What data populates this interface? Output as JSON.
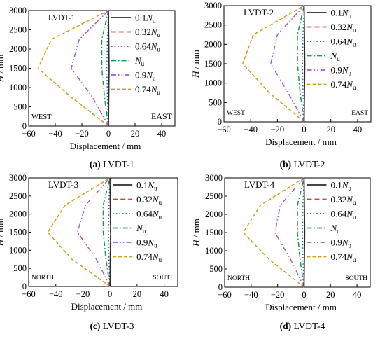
{
  "figure": {
    "legend_entries": [
      {
        "prefix": "0.1",
        "var": "N",
        "sub": "u",
        "color": "#2b2b2b",
        "dash": "solid"
      },
      {
        "prefix": "0.32",
        "var": "N",
        "sub": "u",
        "color": "#e8372e",
        "dash": "dash"
      },
      {
        "prefix": "0.64",
        "var": "N",
        "sub": "u",
        "color": "#1f5fb5",
        "dash": "dot"
      },
      {
        "prefix": "",
        "var": "N",
        "sub": "u",
        "color": "#1a9a48",
        "dash": "dashdot"
      },
      {
        "prefix": "0.9",
        "var": "N",
        "sub": "u",
        "color": "#a657d6",
        "dash": "dashdotdot"
      },
      {
        "prefix": "0.74",
        "var": "N",
        "sub": "u",
        "color": "#d99b1a",
        "dash": "shortdash"
      }
    ]
  },
  "chart_data": [
    {
      "type": "line",
      "panel_label": "(a)",
      "caption": "LVDT-1",
      "inner_title": "LVDT-1",
      "xlabel": "Displacement / mm",
      "ylabel_var": "H",
      "ylabel_unit": "/ mm",
      "xlim": [
        -60,
        50
      ],
      "ylim": [
        0,
        3000
      ],
      "xticks": [
        -60,
        -40,
        -20,
        0,
        20,
        40
      ],
      "yticks": [
        0,
        500,
        1000,
        1500,
        2000,
        2500,
        3000
      ],
      "left_note": "WEST",
      "right_note": "EAST",
      "series": [
        {
          "label": "0.1Nu",
          "points": [
            [
              0,
              0
            ],
            [
              0.5,
              1500
            ],
            [
              0,
              3000
            ]
          ]
        },
        {
          "label": "0.32Nu",
          "points": [
            [
              0,
              0
            ],
            [
              0.3,
              1500
            ],
            [
              0,
              3000
            ]
          ]
        },
        {
          "label": "0.64Nu",
          "points": [
            [
              0,
              0
            ],
            [
              -0.8,
              750
            ],
            [
              -1.2,
              1500
            ],
            [
              -0.8,
              2250
            ],
            [
              0,
              3000
            ]
          ]
        },
        {
          "label": "Nu",
          "points": [
            [
              0,
              0
            ],
            [
              -3,
              750
            ],
            [
              -5,
              1500
            ],
            [
              -5,
              2250
            ],
            [
              0,
              3000
            ]
          ]
        },
        {
          "label": "0.9Nu",
          "points": [
            [
              0,
              0
            ],
            [
              -12,
              750
            ],
            [
              -28,
              1500
            ],
            [
              -22,
              2250
            ],
            [
              0,
              3000
            ]
          ]
        },
        {
          "label": "0.74Nu",
          "points": [
            [
              0,
              0
            ],
            [
              -28,
              750
            ],
            [
              -53,
              1500
            ],
            [
              -43,
              2250
            ],
            [
              0,
              3000
            ]
          ]
        }
      ]
    },
    {
      "type": "line",
      "panel_label": "(b)",
      "caption": "LVDT-2",
      "inner_title": "LVDT-2",
      "xlabel": "Displacement / mm",
      "ylabel_var": "H",
      "ylabel_unit": "/ mm",
      "xlim": [
        -60,
        50
      ],
      "ylim": [
        0,
        3000
      ],
      "xticks": [
        -60,
        -40,
        -20,
        0,
        20,
        40
      ],
      "yticks": [
        0,
        500,
        1000,
        1500,
        2000,
        2500,
        3000
      ],
      "left_note": "WEST",
      "right_note": "EAST",
      "series": [
        {
          "label": "0.1Nu",
          "points": [
            [
              0,
              0
            ],
            [
              0.5,
              1500
            ],
            [
              0,
              3000
            ]
          ]
        },
        {
          "label": "0.32Nu",
          "points": [
            [
              0,
              0
            ],
            [
              0.3,
              1500
            ],
            [
              0,
              3000
            ]
          ]
        },
        {
          "label": "0.64Nu",
          "points": [
            [
              0,
              0
            ],
            [
              -0.8,
              750
            ],
            [
              -1.2,
              1500
            ],
            [
              -0.8,
              2250
            ],
            [
              0,
              3000
            ]
          ]
        },
        {
          "label": "Nu",
          "points": [
            [
              0,
              0
            ],
            [
              -3,
              750
            ],
            [
              -5,
              1500
            ],
            [
              -5,
              2250
            ],
            [
              0,
              3000
            ]
          ]
        },
        {
          "label": "0.9Nu",
          "points": [
            [
              0,
              0
            ],
            [
              -12,
              750
            ],
            [
              -25,
              1500
            ],
            [
              -20,
              2250
            ],
            [
              0,
              3000
            ]
          ]
        },
        {
          "label": "0.74Nu",
          "points": [
            [
              0,
              0
            ],
            [
              -26,
              750
            ],
            [
              -46,
              1500
            ],
            [
              -38,
              2250
            ],
            [
              0,
              3000
            ]
          ]
        }
      ]
    },
    {
      "type": "line",
      "panel_label": "(c)",
      "caption": "LVDT-3",
      "inner_title": "LVDT-3",
      "xlabel": "Displacement / mm",
      "ylabel_var": "H",
      "ylabel_unit": "/ mm",
      "xlim": [
        -60,
        50
      ],
      "ylim": [
        0,
        3000
      ],
      "xticks": [
        -60,
        -40,
        -20,
        0,
        20,
        40
      ],
      "yticks": [
        0,
        500,
        1000,
        1500,
        2000,
        2500,
        3000
      ],
      "left_note": "NORTH",
      "right_note": "SOUTH",
      "series": [
        {
          "label": "0.1Nu",
          "points": [
            [
              0,
              0
            ],
            [
              0.5,
              1500
            ],
            [
              0,
              3000
            ]
          ]
        },
        {
          "label": "0.32Nu",
          "points": [
            [
              0,
              0
            ],
            [
              0.3,
              1500
            ],
            [
              0,
              3000
            ]
          ]
        },
        {
          "label": "0.64Nu",
          "points": [
            [
              0,
              0
            ],
            [
              -0.8,
              750
            ],
            [
              -1.2,
              1500
            ],
            [
              -0.8,
              2250
            ],
            [
              0,
              3000
            ]
          ]
        },
        {
          "label": "Nu",
          "points": [
            [
              0,
              0
            ],
            [
              -3,
              750
            ],
            [
              -5,
              1500
            ],
            [
              -5,
              2250
            ],
            [
              0,
              3000
            ]
          ]
        },
        {
          "label": "0.9Nu",
          "points": [
            [
              0,
              0
            ],
            [
              -10,
              750
            ],
            [
              -24,
              1500
            ],
            [
              -18,
              2250
            ],
            [
              0,
              3000
            ]
          ]
        },
        {
          "label": "0.74Nu",
          "points": [
            [
              0,
              0
            ],
            [
              -28,
              750
            ],
            [
              -46,
              1500
            ],
            [
              -33,
              2250
            ],
            [
              0,
              3000
            ]
          ]
        }
      ]
    },
    {
      "type": "line",
      "panel_label": "(d)",
      "caption": "LVDT-4",
      "inner_title": "LVDT-4",
      "xlabel": "Displacement / mm",
      "ylabel_var": "H",
      "ylabel_unit": "/ mm",
      "xlim": [
        -60,
        50
      ],
      "ylim": [
        0,
        3000
      ],
      "xticks": [
        -60,
        -40,
        -20,
        0,
        20,
        40
      ],
      "yticks": [
        0,
        500,
        1000,
        1500,
        2000,
        2500,
        3000
      ],
      "left_note": "NORTH",
      "right_note": "SOUTH",
      "series": [
        {
          "label": "0.1Nu",
          "points": [
            [
              0,
              0
            ],
            [
              0.5,
              1500
            ],
            [
              0,
              3000
            ]
          ]
        },
        {
          "label": "0.32Nu",
          "points": [
            [
              0,
              0
            ],
            [
              0.3,
              1500
            ],
            [
              0,
              3000
            ]
          ]
        },
        {
          "label": "0.64Nu",
          "points": [
            [
              0,
              0
            ],
            [
              -0.8,
              750
            ],
            [
              -1.2,
              1500
            ],
            [
              -0.8,
              2250
            ],
            [
              0,
              3000
            ]
          ]
        },
        {
          "label": "Nu",
          "points": [
            [
              0,
              0
            ],
            [
              -3,
              750
            ],
            [
              -5,
              1500
            ],
            [
              -5,
              2250
            ],
            [
              0,
              3000
            ]
          ]
        },
        {
          "label": "0.9Nu",
          "points": [
            [
              0,
              0
            ],
            [
              -10,
              750
            ],
            [
              -22,
              1500
            ],
            [
              -18,
              2250
            ],
            [
              0,
              3000
            ]
          ]
        },
        {
          "label": "0.74Nu",
          "points": [
            [
              0,
              0
            ],
            [
              -26,
              750
            ],
            [
              -46,
              1500
            ],
            [
              -33,
              2250
            ],
            [
              0,
              3000
            ]
          ]
        }
      ]
    }
  ]
}
